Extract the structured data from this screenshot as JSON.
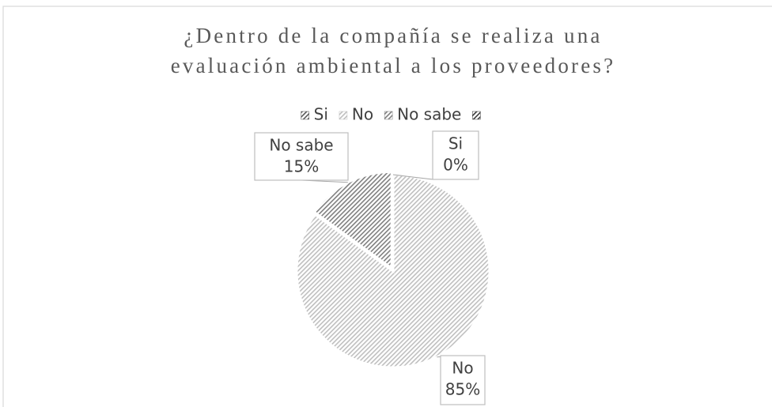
{
  "chart_data": {
    "type": "pie",
    "title": [
      "¿Dentro de la compañía se realiza una",
      "evaluación ambiental a los proveedores?"
    ],
    "categories": [
      "Si",
      "No",
      "No sabe",
      null
    ],
    "values": [
      0,
      85,
      15,
      0
    ],
    "value_labels": [
      "0%",
      "85%",
      "15%",
      null
    ],
    "colors": [
      "#595959",
      "#bfbfbf",
      "#7f7f7f",
      "#3a3a3a"
    ],
    "legend": "top"
  }
}
